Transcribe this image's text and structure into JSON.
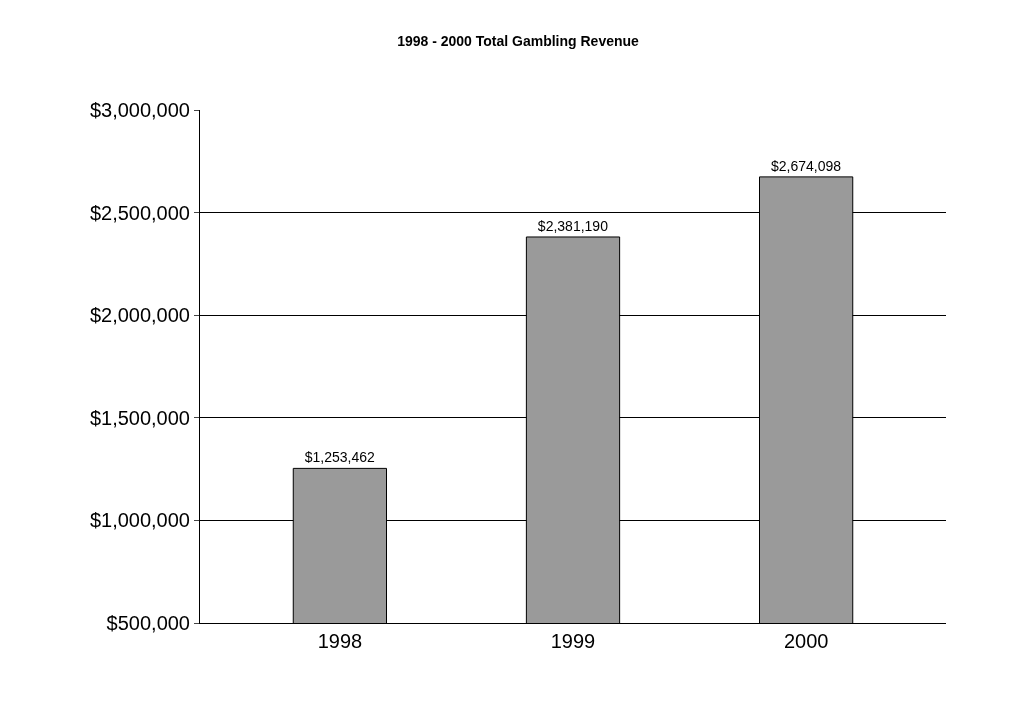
{
  "chart_data": {
    "type": "bar",
    "title": "1998 - 2000 Total Gambling Revenue",
    "categories": [
      "1998",
      "1999",
      "2000"
    ],
    "values": [
      1253462,
      2381190,
      2674098
    ],
    "value_labels": [
      "$1,253,462",
      "$2,381,190",
      "$2,674,098"
    ],
    "color": "#9a9a9a",
    "ylim": [
      500000,
      3000000
    ],
    "yticks": [
      {
        "value": 500000,
        "label": "$500,000"
      },
      {
        "value": 1000000,
        "label": "$1,000,000"
      },
      {
        "value": 1500000,
        "label": "$1,500,000"
      },
      {
        "value": 2000000,
        "label": "$2,000,000"
      },
      {
        "value": 2500000,
        "label": "$2,500,000"
      },
      {
        "value": 3000000,
        "label": "$3,000,000"
      }
    ],
    "grid": "y"
  }
}
